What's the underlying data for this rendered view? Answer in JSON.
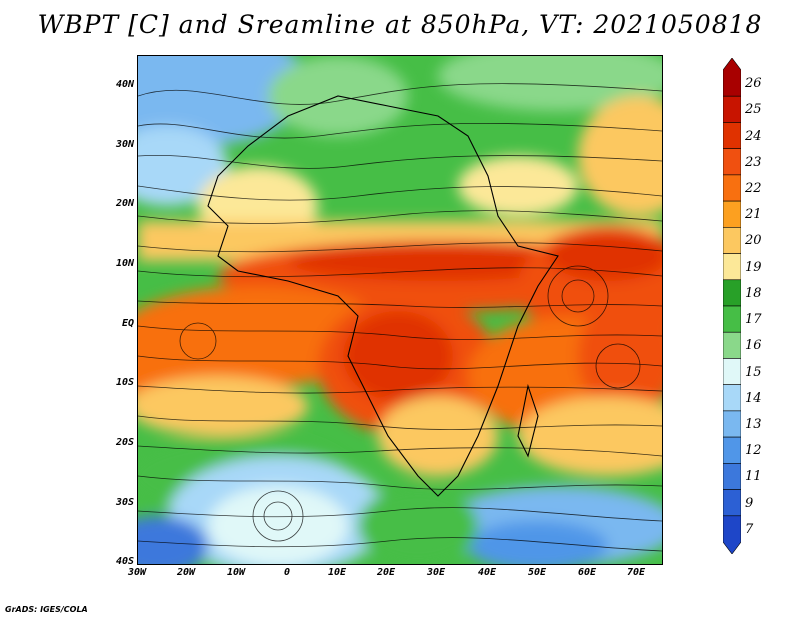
{
  "title": "WBPT [C] and Sreamline at 850hPa, VT: 2021050818",
  "credit": "GrADS: IGES/COLA",
  "lat_labels": [
    "40N",
    "30N",
    "20N",
    "10N",
    "EQ",
    "10S",
    "20S",
    "30S",
    "40S"
  ],
  "lon_labels": [
    "30W",
    "20W",
    "10W",
    "0",
    "10E",
    "20E",
    "30E",
    "40E",
    "50E",
    "60E",
    "70E"
  ],
  "colorbar": {
    "labels": [
      "26",
      "25",
      "24",
      "23",
      "22",
      "21",
      "20",
      "19",
      "18",
      "17",
      "16",
      "15",
      "14",
      "13",
      "12",
      "11",
      "9",
      "7"
    ],
    "colors": [
      "#a80000",
      "#c81400",
      "#e03200",
      "#f05010",
      "#f87010",
      "#fca020",
      "#fcc860",
      "#fce898",
      "#28a028",
      "#46be46",
      "#8ad88a",
      "#e0f8f8",
      "#a8d8f8",
      "#7ab8f0",
      "#5096e8",
      "#3c78dc",
      "#2c60d4",
      "#1e46c8"
    ]
  },
  "field": {
    "variable": "WBPT [C]",
    "overlay": "Sreamline",
    "level": "850hPa",
    "valid_time": "2021050818"
  }
}
